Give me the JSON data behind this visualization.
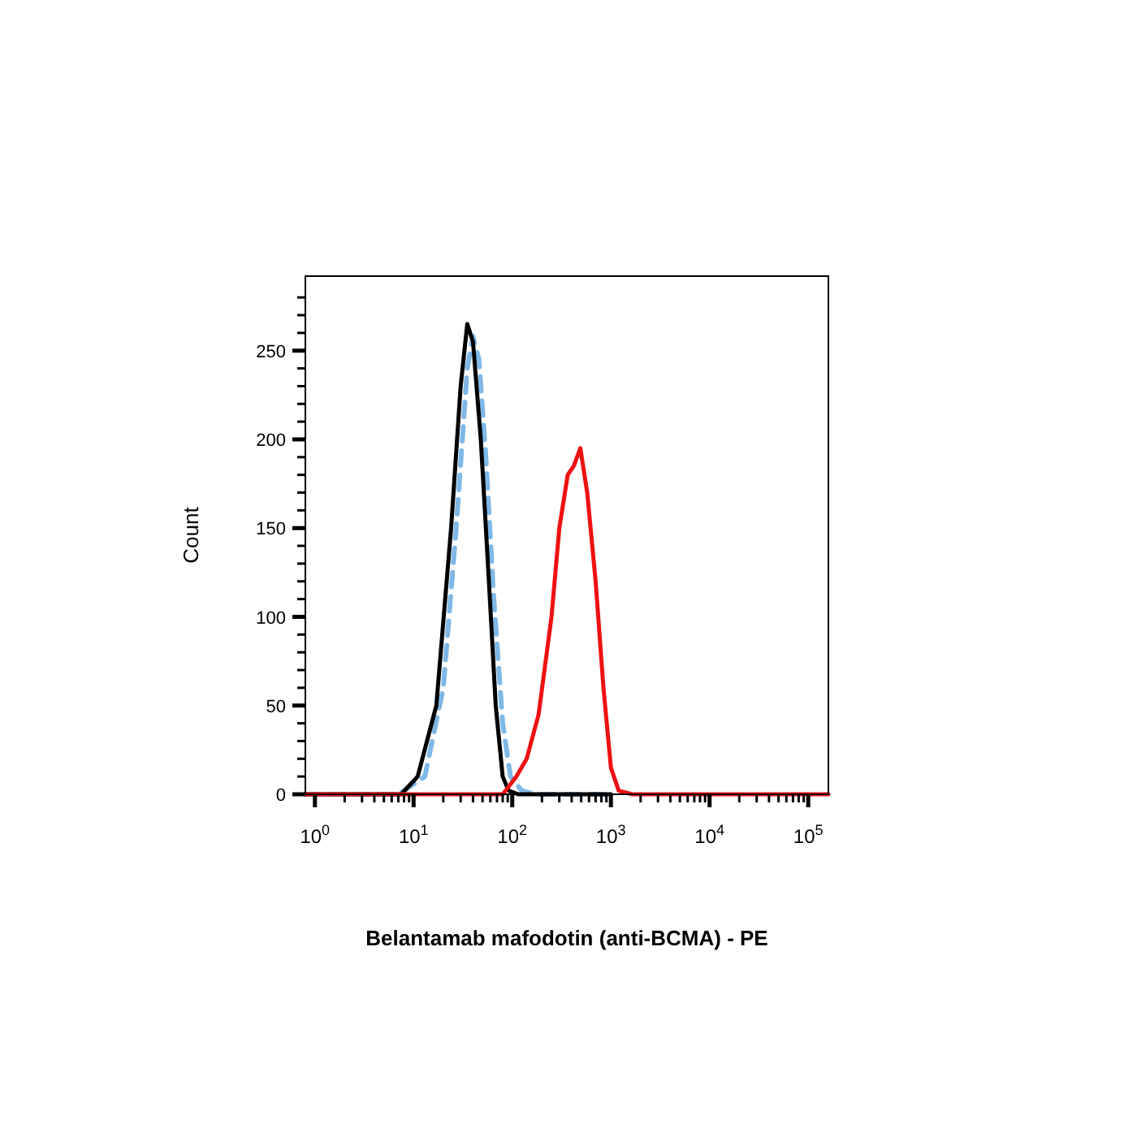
{
  "chart_data": {
    "type": "line",
    "xlabel": "Belantamab mafodotin (anti-BCMA) - PE",
    "ylabel": "Count",
    "log": "x",
    "grid": false,
    "xlim": [
      0.8,
      160000
    ],
    "ylim": [
      0,
      292
    ],
    "xticks": [
      {
        "value": 1,
        "label": "10$^{0}$"
      },
      {
        "value": 2,
        "label": null
      },
      {
        "value": 3,
        "label": null
      },
      {
        "value": 4,
        "label": null
      },
      {
        "value": 5,
        "label": null
      },
      {
        "value": 6,
        "label": null
      },
      {
        "value": 7,
        "label": null
      },
      {
        "value": 8,
        "label": null
      },
      {
        "value": 9,
        "label": null
      },
      {
        "value": 10,
        "label": "10$^{1}$"
      },
      {
        "value": 20,
        "label": null
      },
      {
        "value": 30,
        "label": null
      },
      {
        "value": 40,
        "label": null
      },
      {
        "value": 50,
        "label": null
      },
      {
        "value": 60,
        "label": null
      },
      {
        "value": 70,
        "label": null
      },
      {
        "value": 80,
        "label": null
      },
      {
        "value": 90,
        "label": null
      },
      {
        "value": 100,
        "label": "10$^{2}$"
      },
      {
        "value": 200,
        "label": null
      },
      {
        "value": 300,
        "label": null
      },
      {
        "value": 400,
        "label": null
      },
      {
        "value": 500,
        "label": null
      },
      {
        "value": 600,
        "label": null
      },
      {
        "value": 700,
        "label": null
      },
      {
        "value": 800,
        "label": null
      },
      {
        "value": 900,
        "label": null
      },
      {
        "value": 1000,
        "label": "10$^{3}$"
      },
      {
        "value": 2000,
        "label": null
      },
      {
        "value": 3000,
        "label": null
      },
      {
        "value": 4000,
        "label": null
      },
      {
        "value": 5000,
        "label": null
      },
      {
        "value": 6000,
        "label": null
      },
      {
        "value": 7000,
        "label": null
      },
      {
        "value": 8000,
        "label": null
      },
      {
        "value": 9000,
        "label": null
      },
      {
        "value": 10000,
        "label": "10$^{4}$"
      },
      {
        "value": 20000,
        "label": null
      },
      {
        "value": 30000,
        "label": null
      },
      {
        "value": 40000,
        "label": null
      },
      {
        "value": 50000,
        "label": null
      },
      {
        "value": 60000,
        "label": null
      },
      {
        "value": 70000,
        "label": null
      },
      {
        "value": 80000,
        "label": null
      },
      {
        "value": 90000,
        "label": null
      },
      {
        "value": 100000,
        "label": "10$^{5}$"
      }
    ],
    "yticks": [
      0,
      {
        "value": 10,
        "label": null
      },
      {
        "value": 20,
        "label": null
      },
      {
        "value": 30,
        "label": null
      },
      {
        "value": 40,
        "label": null
      },
      50,
      {
        "value": 60,
        "label": null
      },
      {
        "value": 70,
        "label": null
      },
      {
        "value": 80,
        "label": null
      },
      {
        "value": 90,
        "label": null
      },
      100,
      {
        "value": 110,
        "label": null
      },
      {
        "value": 120,
        "label": null
      },
      {
        "value": 130,
        "label": null
      },
      {
        "value": 140,
        "label": null
      },
      150,
      {
        "value": 160,
        "label": null
      },
      {
        "value": 170,
        "label": null
      },
      {
        "value": 180,
        "label": null
      },
      {
        "value": 190,
        "label": null
      },
      200,
      {
        "value": 210,
        "label": null
      },
      {
        "value": 220,
        "label": null
      },
      {
        "value": 230,
        "label": null
      },
      {
        "value": 240,
        "label": null
      },
      250,
      {
        "value": 260,
        "label": null
      },
      {
        "value": 270,
        "label": null
      },
      {
        "value": 280,
        "label": null
      }
    ],
    "series": [
      {
        "color": "#7fb8e6",
        "line_style": "dashed",
        "x": [
          0.8,
          7,
          13,
          20,
          27,
          35,
          40,
          46,
          54,
          65,
          80,
          96,
          125,
          170,
          1000
        ],
        "values": [
          0,
          0,
          10,
          60,
          150,
          240,
          258,
          245,
          190,
          110,
          40,
          10,
          2,
          0,
          0
        ]
      },
      {
        "color": "#000000",
        "line_style": "solid",
        "x": [
          0.8,
          7.5,
          11,
          17,
          24,
          30,
          35,
          40,
          48,
          58,
          68,
          80,
          92,
          115,
          1000
        ],
        "values": [
          0,
          0,
          10,
          50,
          150,
          230,
          265,
          255,
          200,
          120,
          50,
          10,
          2,
          0,
          0
        ]
      },
      {
        "color": "#ee1111",
        "line_style": "solid",
        "x": [
          0.8,
          80,
          110,
          140,
          185,
          250,
          300,
          365,
          420,
          490,
          575,
          700,
          840,
          1000,
          1200,
          1650,
          160000
        ],
        "values": [
          0,
          0,
          10,
          20,
          45,
          100,
          150,
          180,
          185,
          195,
          170,
          120,
          60,
          15,
          2,
          0,
          0
        ]
      }
    ]
  }
}
